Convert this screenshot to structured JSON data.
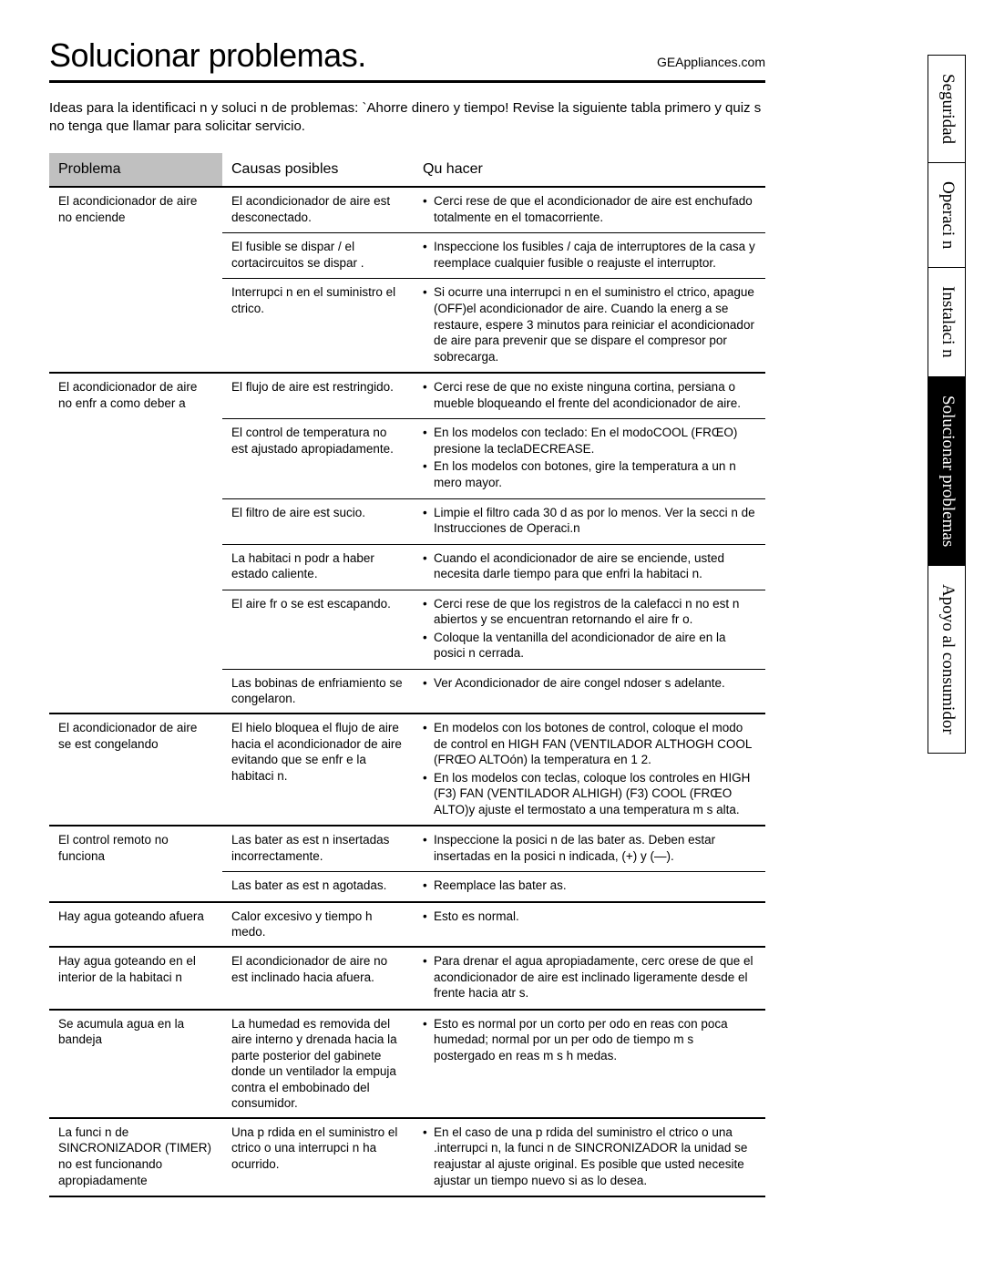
{
  "header": {
    "title": "Solucionar problemas.",
    "url": "GEAppliances.com",
    "intro": "Ideas para la identificaci n y soluci n de problemas: `Ahorre dinero y tiempo! Revise la siguiente tabla primero y quiz s no tenga que llamar para solicitar servicio."
  },
  "table": {
    "headers": {
      "problem": "Problema",
      "causes": "Causas posibles",
      "todo": "Qu  hacer"
    },
    "sections": [
      {
        "problem": "El acondicionador de aire no enciende",
        "rows": [
          {
            "cause": "El acondicionador de aire est  desconectado.",
            "todos": [
              "Cerci rese de que el acondicionador de aire est  enchufado totalmente en el tomacorriente."
            ]
          },
          {
            "cause": "El fusible se dispar  / el cortacircuitos se dispar .",
            "todos": [
              "Inspeccione los fusibles / caja de interruptores de la casa y reemplace cualquier fusible o reajuste el interruptor."
            ]
          },
          {
            "cause": "Interrupci n en el suministro el ctrico.",
            "todos": [
              "Si ocurre una interrupci n en el suministro el ctrico, apague (OFF)el acondicionador de aire. Cuando la energ a se restaure, espere 3 minutos para reiniciar el acondicionador de aire para prevenir que se dispare el compresor por sobrecarga."
            ]
          }
        ]
      },
      {
        "problem": "El acondicionador de aire no enfr a como deber a",
        "rows": [
          {
            "cause": "El flujo de aire est  restringido.",
            "todos": [
              "Cerci rese de que no existe ninguna cortina, persiana o mueble bloqueando el frente del acondicionador de aire."
            ]
          },
          {
            "cause": "El control de temperatura no est  ajustado apropiadamente.",
            "todos": [
              "En los modelos con teclado: En el modoCOOL (FRŒO) presione la teclaDECREASE.",
              "En los modelos con botones, gire la temperatura a un n mero mayor."
            ]
          },
          {
            "cause": "El filtro de aire est  sucio.",
            "todos": [
              "Limpie el filtro cada 30 d as por lo menos. Ver la secci n de Instrucciones de Operaci.n"
            ]
          },
          {
            "cause": "La habitaci n podr a haber estado caliente.",
            "todos": [
              "Cuando el acondicionador de aire se enciende, usted necesita darle tiempo para que enfri  la habitaci n."
            ]
          },
          {
            "cause": "El aire fr o se est  escapando.",
            "todos": [
              "Cerci rese de que los registros de la calefacci n no est n abiertos y se encuentran retornando el aire fr o.",
              "Coloque la ventanilla del acondicionador de aire en la posici n cerrada."
            ]
          },
          {
            "cause": "Las bobinas de enfriamiento se congelaron.",
            "todos": [
              "Ver Acondicionador de aire congel ndoser s adelante."
            ]
          }
        ]
      },
      {
        "problem": "El acondicionador de aire se est  congelando",
        "rows": [
          {
            "cause": "El hielo bloquea el flujo de aire hacia el acondicionador de aire evitando que se enfr e la habitaci n.",
            "todos": [
              "En modelos con los botones de control, coloque el modo de control en HIGH FAN (VENTILADOR ALTHOGH COOL (FRŒO ALTOón) la temperatura en 1  2.",
              "En los modelos con teclas, coloque los controles en HIGH (F3) FAN (VENTILADOR ALHIGH) (F3) COOL (FRŒO ALTO)y ajuste el termostato a una temperatura m s alta."
            ]
          }
        ]
      },
      {
        "problem": "El control remoto no funciona",
        "rows": [
          {
            "cause": "Las bater as est n insertadas incorrectamente.",
            "todos": [
              "Inspeccione la posici n de las bater as. Deben estar insertadas en la posici n indicada, (+) y (—)."
            ]
          },
          {
            "cause": "Las bater as est n agotadas.",
            "todos": [
              "Reemplace las bater as."
            ]
          }
        ]
      },
      {
        "problem": "Hay agua goteando afuera",
        "rows": [
          {
            "cause": "Calor excesivo y tiempo h medo.",
            "todos": [
              "Esto es normal."
            ]
          }
        ]
      },
      {
        "problem": "Hay agua goteando en el interior de la habitaci n",
        "rows": [
          {
            "cause": "El acondicionador de aire no est  inclinado hacia afuera.",
            "todos": [
              "Para drenar el agua apropiadamente, cerc orese de que el acondicionador de aire est  inclinado ligeramente desde el frente hacia atr s."
            ]
          }
        ]
      },
      {
        "problem": "Se acumula agua en la bandeja",
        "rows": [
          {
            "cause": "La humedad es removida del aire interno y drenada hacia la parte posterior del gabinete donde un ventilador la empuja contra el embobinado del consumidor.",
            "todos": [
              "Esto es normal por un corto per odo en  reas con poca humedad; normal por un per odo de tiempo m s postergado en  reas m s h medas."
            ]
          }
        ]
      },
      {
        "problem": "La funci n de SINCRONIZADOR (TIMER) no est  funcionando apropiadamente",
        "rows": [
          {
            "cause": "Una p rdida en el suministro el ctrico o una interrupci n ha ocurrido.",
            "todos": [
              "En el caso de una p rdida del suministro el ctrico o una .interrupci n, la funci n de  SINCRONIZADOR la unidad se reajustar  al ajuste original. Es posible que usted necesite ajustar un tiempo nuevo si as  lo desea."
            ]
          }
        ]
      }
    ]
  },
  "tabs": [
    {
      "label": "Seguridad",
      "active": false
    },
    {
      "label": "Operaci n",
      "active": false
    },
    {
      "label": "Instalaci n",
      "active": false
    },
    {
      "label": "Solucionar problemas",
      "active": true
    },
    {
      "label": "Apoyo al consumidor",
      "active": false
    }
  ],
  "colors": {
    "header_gray": "#c0c0c0",
    "text": "#000000",
    "bg": "#ffffff"
  }
}
